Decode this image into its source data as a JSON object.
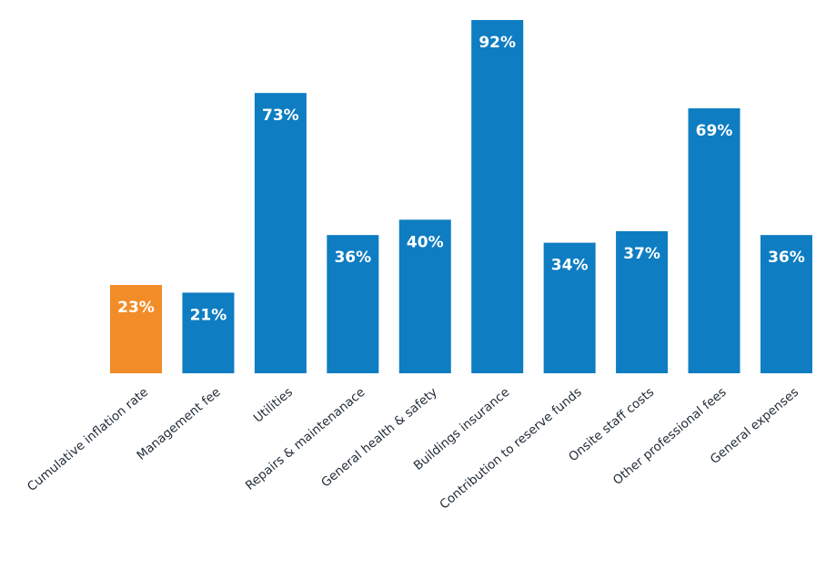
{
  "chart_data": {
    "type": "bar",
    "title": "",
    "xlabel": "",
    "ylabel": "",
    "ylim": [
      0,
      100
    ],
    "grid": false,
    "legend": "none",
    "categories": [
      "Cumulative inflation rate",
      "Management fee",
      "Utilities",
      "Repairs & maintenanace",
      "General health & safety",
      "Buildings insurance",
      "Contribution to reserve funds",
      "Onsite staff costs",
      "Other professional fees",
      "General expenses"
    ],
    "values": [
      23,
      21,
      73,
      36,
      40,
      92,
      34,
      37,
      69,
      36
    ],
    "value_labels": [
      "23%",
      "21%",
      "73%",
      "36%",
      "40%",
      "92%",
      "34%",
      "37%",
      "69%",
      "36%"
    ],
    "colors": [
      "#f28c28",
      "#0e7dc2",
      "#0e7dc2",
      "#0e7dc2",
      "#0e7dc2",
      "#0e7dc2",
      "#0e7dc2",
      "#0e7dc2",
      "#0e7dc2",
      "#0e7dc2"
    ]
  }
}
